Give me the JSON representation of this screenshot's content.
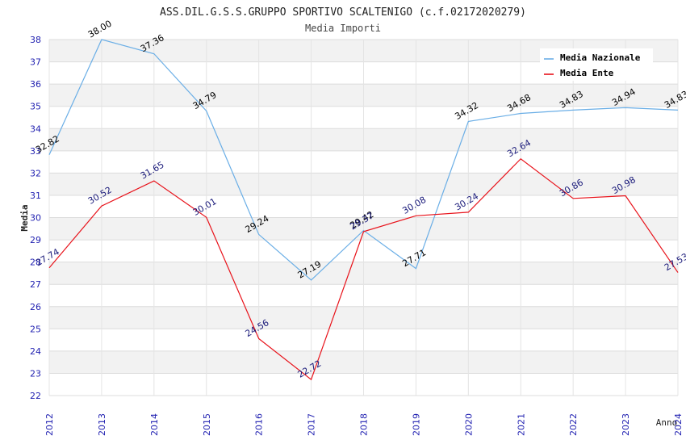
{
  "chart_data": {
    "type": "line",
    "title": "ASS.DIL.G.S.S.GRUPPO SPORTIVO SCALTENIGO (c.f.02172020279)",
    "subtitle": "Media Importi",
    "xlabel": "Anno",
    "ylabel": "Media",
    "ylim": [
      22,
      38
    ],
    "grid": true,
    "legend_position": "top-right",
    "categories": [
      "2012",
      "2013",
      "2014",
      "2015",
      "2016",
      "2017",
      "2018",
      "2019",
      "2020",
      "2021",
      "2022",
      "2023",
      "2024"
    ],
    "yticks": [
      "22",
      "23",
      "24",
      "25",
      "26",
      "27",
      "28",
      "29",
      "30",
      "31",
      "32",
      "33",
      "34",
      "35",
      "36",
      "37",
      "38"
    ],
    "series": [
      {
        "name": "Media Nazionale",
        "color": "#6aaee6",
        "label_color": "#000000",
        "values": [
          32.82,
          38.0,
          37.36,
          34.79,
          29.24,
          27.19,
          29.42,
          27.71,
          34.32,
          34.68,
          34.83,
          34.94,
          34.83
        ],
        "labels": [
          "32.82",
          "38.00",
          "37.36",
          "34.79",
          "29.24",
          "27.19",
          "29.42",
          "27.71",
          "34.32",
          "34.68",
          "34.83",
          "34.94",
          "34.83"
        ]
      },
      {
        "name": "Media Ente",
        "color": "#e8121a",
        "label_color": "#1a1a7a",
        "values": [
          27.74,
          30.52,
          31.65,
          30.01,
          24.56,
          22.72,
          29.37,
          30.08,
          30.24,
          32.64,
          30.86,
          30.98,
          27.53
        ],
        "labels": [
          "27.74",
          "30.52",
          "31.65",
          "30.01",
          "24.56",
          "22.72",
          "29.37",
          "30.08",
          "30.24",
          "32.64",
          "30.86",
          "30.98",
          "27.53"
        ]
      }
    ]
  }
}
